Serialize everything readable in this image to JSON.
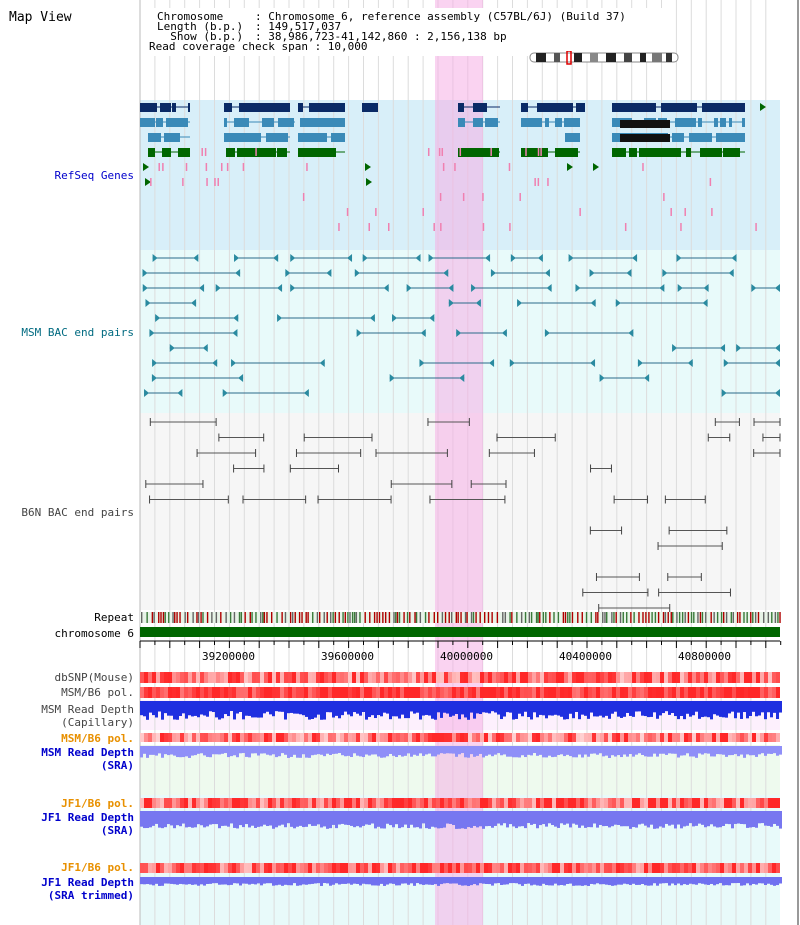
{
  "page_title": "Map View",
  "info": {
    "chromosome_key": "Chromosome     ",
    "chromosome_val": ": Chromosome 6, reference assembly (C57BL/6J) (Build 37)",
    "length_key": "Length (b.p.) ",
    "length_val": ": 149,517,037",
    "show_key": "  Show (b.p.) ",
    "show_val": ": 38,986,723-41,142,860 : 2,156,138 bp",
    "coverage": "Read coverage check span : 10,000"
  },
  "tracks": {
    "refseq": "RefSeq Genes",
    "msm_bac": "MSM BAC end pairs",
    "b6n_bac": "B6N BAC end pairs",
    "repeat": "Repeat",
    "chromosome": "chromosome 6",
    "dbsnp": "dbSNP(Mouse)",
    "msm_b6_pol_1": "MSM/B6 pol.",
    "msm_depth_cap_1": "MSM Read Depth",
    "msm_depth_cap_2": "(Capillary)",
    "msm_b6_pol_2": "MSM/B6 pol.",
    "msm_depth_sra_1": "MSM Read Depth",
    "msm_depth_sra_2": "(SRA)",
    "jf1_b6_pol_1": "JF1/B6 pol.",
    "jf1_depth_sra_1": "JF1 Read Depth",
    "jf1_depth_sra_2": "(SRA)",
    "jf1_b6_pol_2": "JF1/B6 pol.",
    "jf1_depth_trim_1": "JF1 Read Depth",
    "jf1_depth_trim_2": "(SRA trimmed)"
  },
  "axis": {
    "ticks": [
      "39200000",
      "39600000",
      "40000000",
      "40400000",
      "40800000"
    ]
  },
  "colors": {
    "refseq_bg": "#d8eff9",
    "bac_bg": "#e8fafa",
    "b6n_bg": "#f4f4f4",
    "highlight": "#f8d0f0",
    "chrom_green": "#006600",
    "label_blue": "#0000cc",
    "label_teal": "#006a80",
    "label_orange": "#e89000",
    "depth_blue": "#2222ee",
    "depth_light": "#8888ff"
  }
}
